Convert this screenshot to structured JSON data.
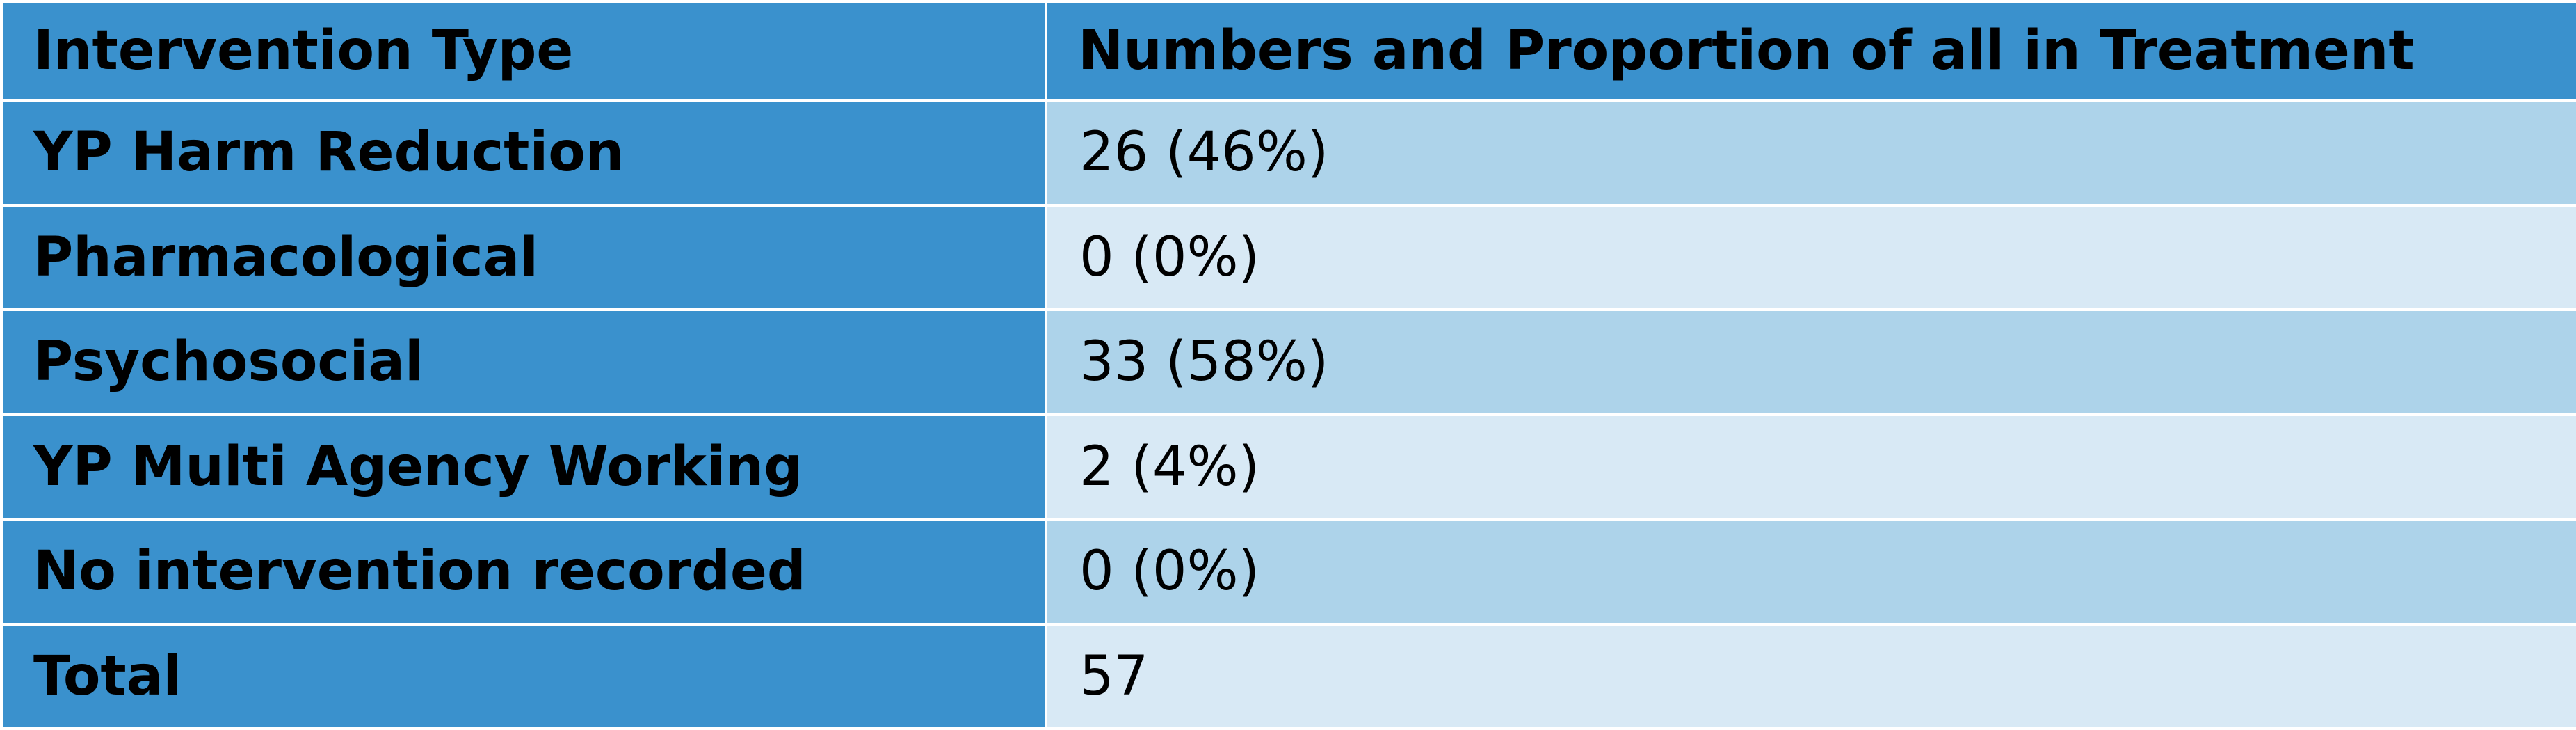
{
  "table": {
    "headers": [
      "Intervention Type",
      "Numbers and Proportion of all in Treatment"
    ],
    "rows": [
      {
        "type": "YP Harm Reduction",
        "value": "26 (46%)"
      },
      {
        "type": "Pharmacological",
        "value": "0 (0%)"
      },
      {
        "type": "Psychosocial",
        "value": "33 (58%)"
      },
      {
        "type": "YP Multi Agency Working",
        "value": "2 (4%)"
      },
      {
        "type": "No intervention recorded",
        "value": "0 (0%)"
      },
      {
        "type": "Total",
        "value": "57"
      }
    ]
  },
  "colors": {
    "header_and_label_bg": "#3a91cd",
    "value_bg_alt_dark": "#add3ea",
    "value_bg_alt_light": "#d8e9f5",
    "border": "#ffffff"
  }
}
